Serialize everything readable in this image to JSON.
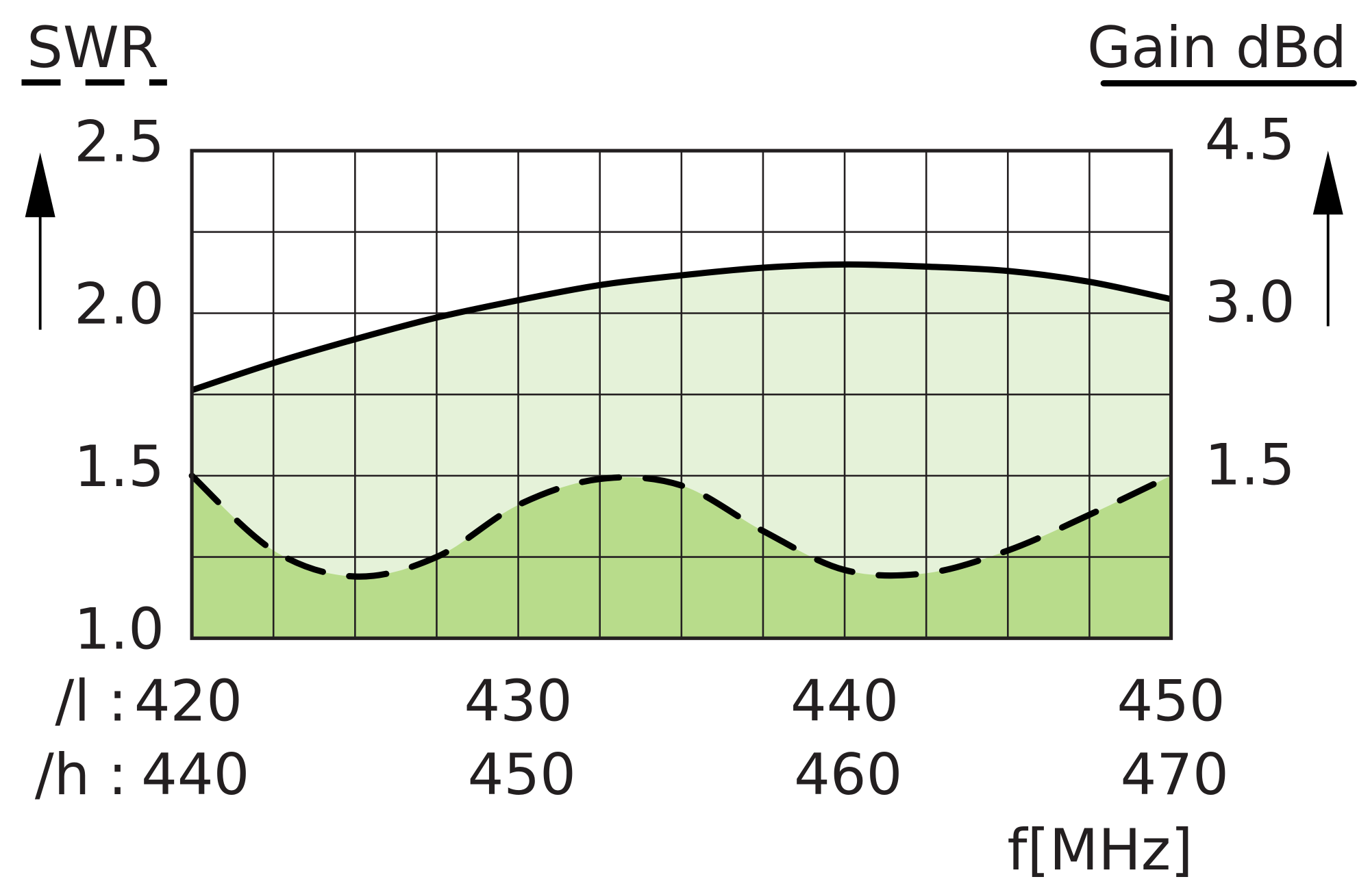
{
  "chart_data": {
    "type": "line",
    "y_label": "SWR",
    "y2_label": "Gain dBd",
    "x_label": "f[MHz]",
    "x_row_labels": [
      "/l :",
      "/h :"
    ],
    "xlim": [
      420,
      450
    ],
    "xticks": [
      420,
      430,
      440,
      450
    ],
    "x2lim": [
      440,
      470
    ],
    "x2ticks": [
      440,
      450,
      460,
      470
    ],
    "x_grid_lines": [
      420,
      422.5,
      425,
      427.5,
      430,
      432.5,
      435,
      437.5,
      440,
      442.5,
      445,
      447.5,
      450
    ],
    "ylim": [
      1,
      2.5
    ],
    "yticks": [
      {
        "value": 1,
        "label": "1.0"
      },
      1.5,
      {
        "value": 2,
        "label": "2.0"
      },
      2.5
    ],
    "y_grid_lines": [
      1,
      1.25,
      1.5,
      1.75,
      2,
      2.25,
      2.5
    ],
    "y2lim": [
      0,
      4.5
    ],
    "y2ticks": [
      1.5,
      {
        "value": 3,
        "label": "3.0"
      },
      4.5
    ],
    "grid": true,
    "x": [
      420,
      422.5,
      425,
      427.5,
      430,
      432.5,
      435,
      437.5,
      440,
      442.5,
      445,
      447.5,
      450
    ],
    "series": [
      {
        "name": "SWR",
        "color": "#000000",
        "fill": "#b8dc8b",
        "dashed": true,
        "values": [
          1.5,
          1.27,
          1.19,
          1.25,
          1.41,
          1.49,
          1.47,
          1.33,
          1.21,
          1.2,
          1.27,
          1.38,
          1.5
        ]
      },
      {
        "name": "Gain dBd",
        "axis": "y2",
        "color": "#000000",
        "fill": "#e5f2d9",
        "dashed": false,
        "values": [
          2.29,
          2.54,
          2.76,
          2.96,
          3.12,
          3.26,
          3.35,
          3.42,
          3.45,
          3.43,
          3.39,
          3.29,
          3.13
        ]
      }
    ]
  }
}
